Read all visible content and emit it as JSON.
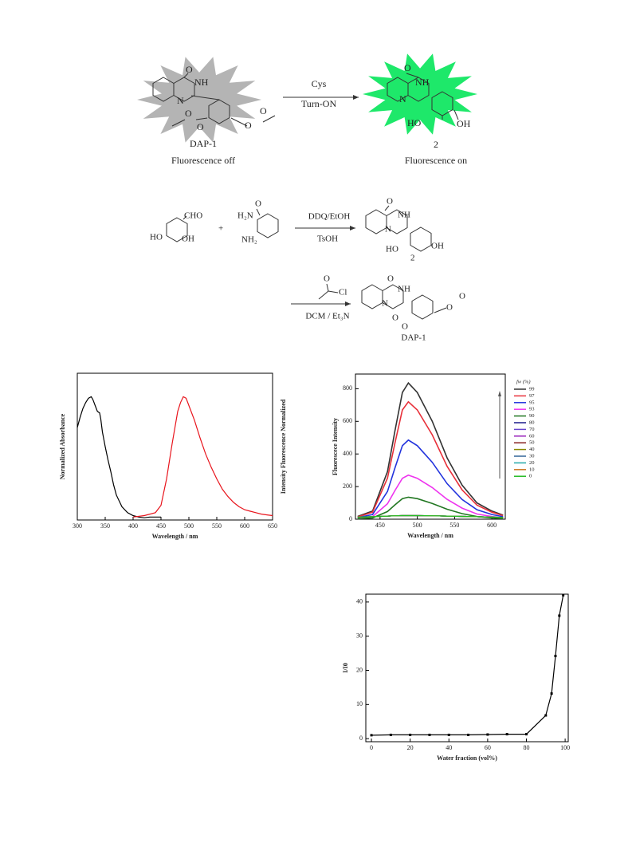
{
  "scheme1": {
    "labels": [
      "O",
      "NH",
      "N",
      "O",
      "O",
      "O",
      "O",
      "DAP-1",
      "Fluorescence off",
      "Cys",
      "Turn-ON",
      "O",
      "NH",
      "N",
      "HO",
      "OH",
      "2",
      "Fluorescence on"
    ]
  },
  "scheme2": {
    "labels": [
      "CHO",
      "HO",
      "OH",
      "+",
      "H₂N",
      "O",
      "NH₂",
      "DDQ/EtOH",
      "TsOH",
      "O",
      "NH",
      "N",
      "HO",
      "2",
      "OH",
      "O",
      "Cl",
      "DCM / Et₃N",
      "O",
      "NH",
      "N",
      "O",
      "O",
      "O",
      "O",
      "DAP-1"
    ]
  },
  "chart_data": [
    {
      "type": "line",
      "xlabel": "Wavelength / nm",
      "ylabel": "Normalized Absorbance",
      "y2label": "Intensity Fluorescence Normalized",
      "xlim": [
        300,
        650
      ],
      "xticks": [
        300,
        350,
        400,
        450,
        500,
        550,
        600,
        650
      ],
      "ylim": [
        0,
        1
      ],
      "series": [
        {
          "color": "#000000",
          "x": [
            300,
            305,
            310,
            315,
            320,
            325,
            328,
            332,
            336,
            340,
            342,
            345,
            350,
            355,
            360,
            365,
            370,
            380,
            390,
            400,
            410,
            420,
            430,
            440,
            450
          ],
          "values": [
            0.63,
            0.7,
            0.76,
            0.8,
            0.83,
            0.84,
            0.82,
            0.78,
            0.74,
            0.73,
            0.69,
            0.6,
            0.5,
            0.41,
            0.33,
            0.24,
            0.17,
            0.09,
            0.05,
            0.03,
            0.02,
            0.015,
            0.02,
            0.02,
            0.02
          ]
        },
        {
          "color": "#e8141c",
          "x": [
            400,
            420,
            440,
            450,
            460,
            470,
            480,
            485,
            490,
            495,
            500,
            510,
            520,
            530,
            540,
            550,
            560,
            570,
            580,
            590,
            600,
            610,
            620,
            630,
            640,
            650
          ],
          "values": [
            0.02,
            0.03,
            0.05,
            0.1,
            0.28,
            0.52,
            0.74,
            0.8,
            0.84,
            0.83,
            0.78,
            0.68,
            0.56,
            0.45,
            0.36,
            0.28,
            0.21,
            0.16,
            0.12,
            0.09,
            0.07,
            0.06,
            0.05,
            0.04,
            0.035,
            0.03
          ]
        }
      ]
    },
    {
      "type": "line",
      "xlabel": "Wavelength / nm",
      "ylabel": "Fluorescece Intensity",
      "legend_title": "fw (%)",
      "xlim": [
        417,
        618
      ],
      "xticks": [
        450,
        500,
        550,
        600
      ],
      "ylim": [
        0,
        890
      ],
      "yticks": [
        0,
        200,
        400,
        600,
        800
      ],
      "x": [
        420,
        440,
        460,
        470,
        480,
        488,
        500,
        520,
        540,
        560,
        580,
        600,
        615
      ],
      "series": [
        {
          "name": "99",
          "color": "#333333",
          "values": [
            17,
            50,
            292,
            543,
            777,
            835,
            777,
            601,
            376,
            209,
            100,
            50,
            25
          ]
        },
        {
          "name": "97",
          "color": "#e8303a",
          "values": [
            14,
            43,
            252,
            468,
            670,
            720,
            670,
            518,
            324,
            180,
            86,
            43,
            22
          ]
        },
        {
          "name": "95",
          "color": "#2233dd",
          "values": [
            10,
            29,
            170,
            315,
            451,
            485,
            451,
            349,
            218,
            121,
            58,
            29,
            15
          ]
        },
        {
          "name": "93",
          "color": "#ee33ee",
          "values": [
            5,
            16,
            95,
            176,
            251,
            270,
            251,
            194,
            122,
            68,
            32,
            16,
            8
          ]
        },
        {
          "name": "90",
          "color": "#227722",
          "values": [
            3,
            8,
            47,
            88,
            126,
            135,
            126,
            97,
            61,
            34,
            16,
            8,
            4
          ]
        },
        {
          "name": "80",
          "color": "#1a1a8a",
          "values": [
            12,
            15,
            19,
            21,
            22,
            22,
            22,
            21,
            19,
            17,
            15,
            13,
            11
          ]
        },
        {
          "name": "70",
          "color": "#6644cc",
          "values": [
            12,
            15,
            19,
            21,
            22,
            22,
            22,
            21,
            19,
            17,
            15,
            13,
            11
          ]
        },
        {
          "name": "60",
          "color": "#9922bb",
          "values": [
            12,
            15,
            19,
            21,
            22,
            22,
            22,
            21,
            19,
            17,
            15,
            13,
            11
          ]
        },
        {
          "name": "50",
          "color": "#882222",
          "values": [
            12,
            15,
            19,
            21,
            22,
            22,
            22,
            21,
            19,
            17,
            15,
            13,
            11
          ]
        },
        {
          "name": "40",
          "color": "#888800",
          "values": [
            12,
            15,
            19,
            21,
            22,
            22,
            22,
            21,
            19,
            17,
            15,
            13,
            11
          ]
        },
        {
          "name": "30",
          "color": "#336699",
          "values": [
            12,
            15,
            19,
            21,
            22,
            22,
            22,
            21,
            19,
            17,
            15,
            13,
            11
          ]
        },
        {
          "name": "20",
          "color": "#22aaaa",
          "values": [
            12,
            15,
            19,
            21,
            22,
            22,
            22,
            21,
            19,
            17,
            15,
            13,
            11
          ]
        },
        {
          "name": "10",
          "color": "#cc7722",
          "values": [
            12,
            15,
            19,
            21,
            22,
            22,
            22,
            21,
            19,
            17,
            15,
            13,
            11
          ]
        },
        {
          "name": "0",
          "color": "#22bb22",
          "values": [
            12,
            15,
            19,
            21,
            22,
            22,
            22,
            21,
            19,
            17,
            15,
            13,
            11
          ]
        }
      ]
    },
    {
      "type": "line",
      "markers": true,
      "xlabel": "Water fraction (vol%)",
      "ylabel": "I/I0",
      "xlim": [
        -2.9,
        101.6
      ],
      "xticks": [
        0,
        20,
        40,
        60,
        80,
        100
      ],
      "ylim": [
        -0.9,
        42.3
      ],
      "yticks": [
        0,
        10,
        20,
        30,
        40
      ],
      "x": [
        0,
        10,
        20,
        30,
        40,
        50,
        60,
        70,
        80,
        90,
        93,
        95,
        97,
        99
      ],
      "series": [
        {
          "color": "#000000",
          "values": [
            1,
            1.1,
            1.1,
            1.1,
            1.1,
            1.1,
            1.2,
            1.3,
            1.3,
            6.8,
            13.2,
            24.2,
            36,
            42
          ]
        }
      ]
    }
  ]
}
